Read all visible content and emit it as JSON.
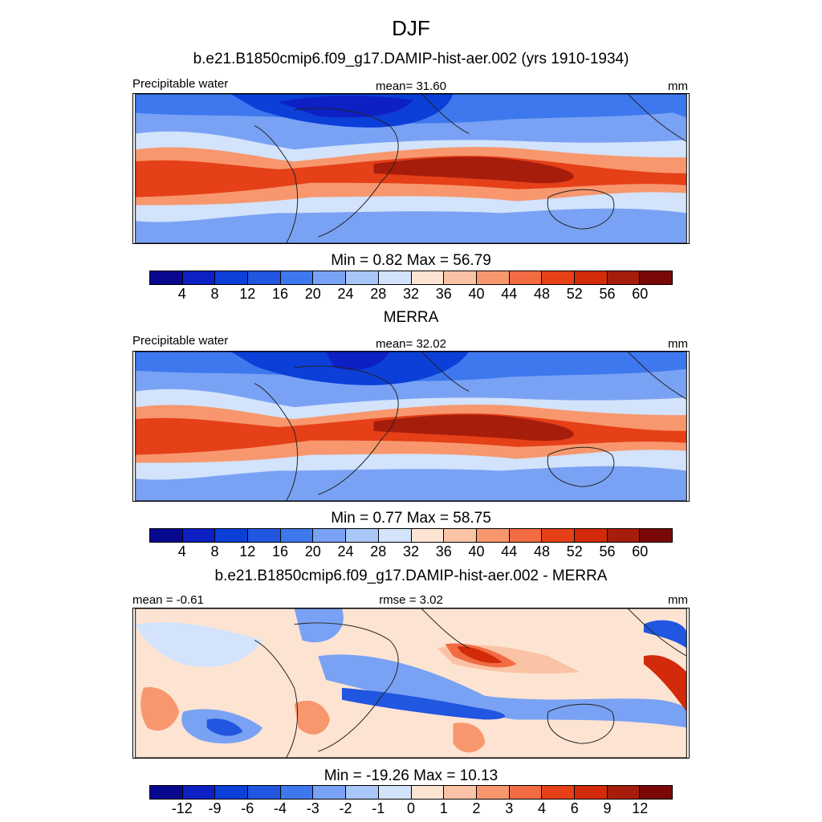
{
  "title": "DJF",
  "palette": [
    "#08088f",
    "#0d20c4",
    "#0b3fd8",
    "#2056e0",
    "#3e78ee",
    "#7aa2f4",
    "#a9c6f8",
    "#d2e3fb",
    "#fde4d2",
    "#fbc3a6",
    "#f8976e",
    "#f26b43",
    "#e54018",
    "#d22a0a",
    "#a71d0c",
    "#7a0808"
  ],
  "panels": [
    {
      "id": "model",
      "subtitle": "b.e21.B1850cmip6.f09_g17.DAMIP-hist-aer.002 (yrs 1910-1934)",
      "left_label": "Precipitable water",
      "center_label": "mean=  31.60",
      "right_label": "mm",
      "minmax": "Min =   0.82 Max =  56.79",
      "min": 0.82,
      "max": 56.79,
      "mean": 31.6,
      "levels": [
        "4",
        "8",
        "12",
        "16",
        "20",
        "24",
        "28",
        "32",
        "36",
        "40",
        "44",
        "48",
        "52",
        "56",
        "60"
      ]
    },
    {
      "id": "merra",
      "subtitle": "MERRA",
      "left_label": "Precipitable water",
      "center_label": "mean=  32.02",
      "right_label": "mm",
      "minmax": "Min =   0.77 Max =  58.75",
      "min": 0.77,
      "max": 58.75,
      "mean": 32.02,
      "levels": [
        "4",
        "8",
        "12",
        "16",
        "20",
        "24",
        "28",
        "32",
        "36",
        "40",
        "44",
        "48",
        "52",
        "56",
        "60"
      ]
    },
    {
      "id": "diff",
      "subtitle": "b.e21.B1850cmip6.f09_g17.DAMIP-hist-aer.002 - MERRA",
      "left_label": "mean =  -0.61",
      "center_label": "rmse =   3.02",
      "right_label": "mm",
      "minmax": "Min = -19.26 Max =  10.13",
      "min": -19.26,
      "max": 10.13,
      "mean": -0.61,
      "rmse": 3.02,
      "levels": [
        "-12",
        "-9",
        "-6",
        "-4",
        "-3",
        "-2",
        "-1",
        "0",
        "1",
        "2",
        "3",
        "4",
        "6",
        "9",
        "12"
      ]
    }
  ]
}
